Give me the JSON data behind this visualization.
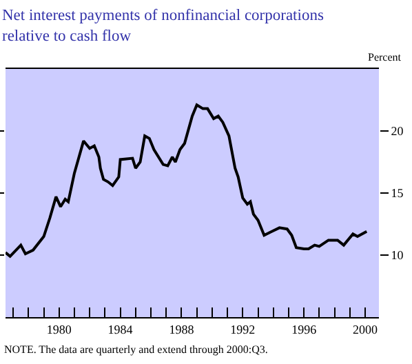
{
  "chart_data": {
    "type": "line",
    "title": "Net interest payments of nonfinancial corporations relative to cash flow",
    "ylabel": "Percent",
    "x": [
      1976.5,
      1976.8,
      1977.5,
      1977.8,
      1978.3,
      1979.0,
      1979.4,
      1979.8,
      1980.1,
      1980.4,
      1980.6,
      1981.0,
      1981.6,
      1982.0,
      1982.3,
      1982.6,
      1982.7,
      1982.9,
      1983.2,
      1983.5,
      1983.9,
      1984.0,
      1984.8,
      1985.0,
      1985.3,
      1985.6,
      1985.9,
      1986.2,
      1986.8,
      1987.1,
      1987.4,
      1987.6,
      1987.9,
      1988.2,
      1988.7,
      1989.0,
      1989.4,
      1989.7,
      1990.1,
      1990.4,
      1990.7,
      1991.1,
      1991.5,
      1991.7,
      1992.0,
      1992.3,
      1992.5,
      1992.7,
      1993.0,
      1993.4,
      1993.9,
      1994.4,
      1994.9,
      1995.2,
      1995.5,
      1996.0,
      1996.3,
      1996.7,
      1997.0,
      1997.6,
      1998.2,
      1998.6,
      1999.2,
      1999.5,
      2000.1
    ],
    "series": [
      {
        "color": "#000000",
        "values": [
          10.2,
          9.9,
          10.8,
          10.1,
          10.4,
          11.5,
          13.0,
          14.7,
          13.9,
          14.5,
          14.3,
          16.6,
          19.2,
          18.6,
          18.8,
          17.9,
          17.0,
          16.1,
          15.9,
          15.6,
          16.3,
          17.7,
          17.8,
          17.0,
          17.5,
          19.6,
          19.4,
          18.5,
          17.3,
          17.2,
          17.9,
          17.5,
          18.5,
          19.0,
          21.2,
          22.1,
          21.8,
          21.8,
          21.0,
          21.2,
          20.7,
          19.6,
          17.0,
          16.3,
          14.6,
          14.1,
          14.3,
          13.3,
          12.8,
          11.6,
          11.9,
          12.2,
          12.1,
          11.6,
          10.6,
          10.5,
          10.5,
          10.8,
          10.7,
          11.2,
          11.2,
          10.8,
          11.7,
          11.5,
          11.9
        ]
      }
    ],
    "xlim": [
      1976.5,
      2000.9
    ],
    "xticks": [
      {
        "value": 1977,
        "label": null
      },
      {
        "value": 1978,
        "label": null
      },
      {
        "value": 1979,
        "label": null
      },
      1980,
      {
        "value": 1981,
        "label": null
      },
      {
        "value": 1982,
        "label": null
      },
      {
        "value": 1983,
        "label": null
      },
      1984,
      {
        "value": 1985,
        "label": null
      },
      {
        "value": 1986,
        "label": null
      },
      {
        "value": 1987,
        "label": null
      },
      1988,
      {
        "value": 1989,
        "label": null
      },
      {
        "value": 1990,
        "label": null
      },
      {
        "value": 1991,
        "label": null
      },
      1992,
      {
        "value": 1993,
        "label": null
      },
      {
        "value": 1994,
        "label": null
      },
      {
        "value": 1995,
        "label": null
      },
      1996,
      {
        "value": 1997,
        "label": null
      },
      {
        "value": 1998,
        "label": null
      },
      {
        "value": 1999,
        "label": null
      },
      2000
    ],
    "ylim": [
      5,
      25
    ],
    "yticks": [
      10,
      15,
      20
    ],
    "line_style": "solid",
    "annotations": [
      "NOTE. The data are quarterly and extend through 2000:Q3."
    ]
  }
}
